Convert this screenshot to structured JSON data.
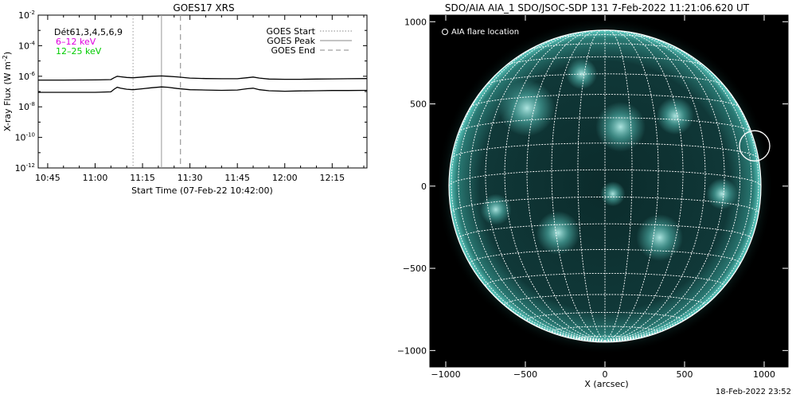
{
  "chart_data": [
    {
      "type": "line",
      "title": "GOES17 XRS",
      "xlabel": "Start Time (07-Feb-22 10:42:00)",
      "ylabel": "X-ray Flux (W m",
      "ylabel_sup": "-2",
      "ylabel_close": ")",
      "yscale": "log",
      "ylim_exp": [
        -12,
        -2
      ],
      "ytick_exps": [
        -12,
        -10,
        -8,
        -6,
        -4,
        -2
      ],
      "ytick_base": "10",
      "ytick_labels": [
        "-12",
        "-10",
        "-8",
        "-6",
        "-4",
        "-2"
      ],
      "xlim": [
        "10:42",
        "12:26"
      ],
      "xticks": [
        "10:45",
        "11:00",
        "11:15",
        "11:30",
        "11:45",
        "12:00",
        "12:15"
      ],
      "legend_text": {
        "detectors": "Dét61,3,4,5,6,9",
        "band_low": "6–12 keV",
        "band_high": "12–25 keV"
      },
      "legend_right": {
        "start": "GOES Start",
        "peak": "GOES Peak",
        "end": "GOES End"
      },
      "events": {
        "start": "11:12",
        "peak": "11:21",
        "end": "11:27"
      },
      "series": [
        {
          "name": "6–12 keV",
          "times": [
            "10:42",
            "10:50",
            "11:00",
            "11:05",
            "11:06",
            "11:07",
            "11:08",
            "11:10",
            "11:12",
            "11:15",
            "11:18",
            "11:21",
            "11:23",
            "11:26",
            "11:30",
            "11:35",
            "11:40",
            "11:45",
            "11:48",
            "11:50",
            "11:52",
            "11:55",
            "12:00",
            "12:05",
            "12:10",
            "12:15",
            "12:20",
            "12:26"
          ],
          "values_exp": [
            -6.25,
            -6.25,
            -6.24,
            -6.22,
            -6.1,
            -6.0,
            -6.03,
            -6.08,
            -6.1,
            -6.05,
            -6.0,
            -5.98,
            -6.0,
            -6.04,
            -6.12,
            -6.15,
            -6.16,
            -6.16,
            -6.1,
            -6.05,
            -6.12,
            -6.18,
            -6.2,
            -6.2,
            -6.18,
            -6.17,
            -6.16,
            -6.15
          ]
        },
        {
          "name": "12–25 keV",
          "times": [
            "10:42",
            "10:50",
            "11:00",
            "11:05",
            "11:06",
            "11:07",
            "11:08",
            "11:10",
            "11:12",
            "11:15",
            "11:18",
            "11:21",
            "11:23",
            "11:26",
            "11:30",
            "11:35",
            "11:40",
            "11:45",
            "11:48",
            "11:50",
            "11:52",
            "11:55",
            "12:00",
            "12:05",
            "12:10",
            "12:15",
            "12:20",
            "12:26"
          ],
          "values_exp": [
            -7.05,
            -7.05,
            -7.05,
            -7.02,
            -6.85,
            -6.72,
            -6.78,
            -6.85,
            -6.88,
            -6.82,
            -6.75,
            -6.7,
            -6.72,
            -6.8,
            -6.88,
            -6.9,
            -6.92,
            -6.9,
            -6.82,
            -6.78,
            -6.88,
            -6.95,
            -6.98,
            -6.96,
            -6.95,
            -6.93,
            -6.93,
            -6.92
          ]
        }
      ]
    },
    {
      "type": "image",
      "title": "SDO/AIA AIA_1 SDO/JSOC-SDP 131  7-Feb-2022 11:21:06.620 UT",
      "xlabel": "X (arcsec)",
      "xlim": [
        -1100,
        1150
      ],
      "ylim": [
        -1100,
        1040
      ],
      "xticks": [
        -1000,
        -500,
        0,
        500,
        1000
      ],
      "yticks": [
        -1000,
        -500,
        0,
        500,
        1000
      ],
      "xtick_labels": [
        "−1000",
        "−500",
        "0",
        "500",
        "1000"
      ],
      "ytick_labels": [
        "−1000",
        "−500",
        "0",
        "500",
        "1000"
      ],
      "solar_radius": 980,
      "b0_deg": -6,
      "grid_step_deg": 10,
      "legend": "AIA flare location",
      "flare_location": {
        "x": 940,
        "y": 245,
        "radius": 95
      },
      "colors": {
        "disk": "#0c2a2a",
        "bright": "#7fe8e0",
        "grid": "#ffffff",
        "background": "#000000"
      }
    }
  ],
  "timestamp": "18-Feb-2022 23:52"
}
